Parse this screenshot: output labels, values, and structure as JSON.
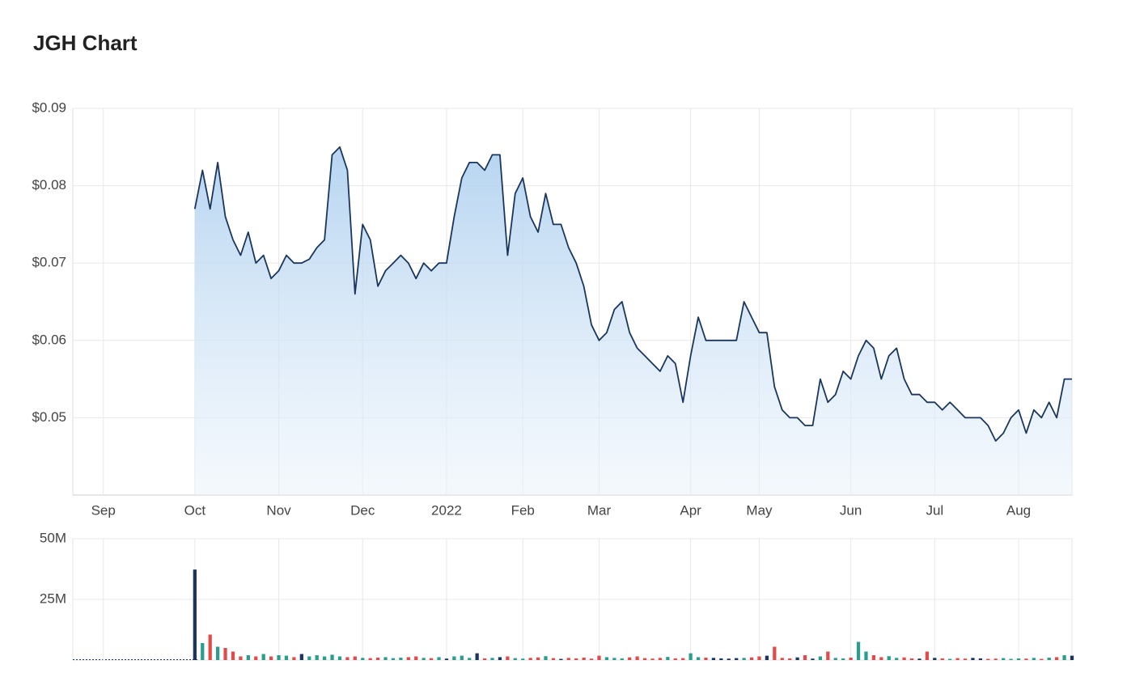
{
  "chart_data": [
    {
      "type": "area",
      "title": "JGH Chart",
      "categories": [
        null,
        null,
        null,
        null,
        "Sep",
        null,
        null,
        null,
        null,
        null,
        null,
        null,
        null,
        null,
        null,
        null,
        "Oct",
        null,
        null,
        null,
        null,
        null,
        null,
        null,
        null,
        null,
        null,
        "Nov",
        null,
        null,
        null,
        null,
        null,
        null,
        null,
        null,
        null,
        null,
        "Dec",
        null,
        null,
        null,
        null,
        null,
        null,
        null,
        null,
        null,
        null,
        "2022",
        null,
        null,
        null,
        null,
        null,
        null,
        null,
        null,
        null,
        "Feb",
        null,
        null,
        null,
        null,
        null,
        null,
        null,
        null,
        null,
        "Mar",
        null,
        null,
        null,
        null,
        null,
        null,
        null,
        null,
        null,
        null,
        null,
        "Apr",
        null,
        null,
        null,
        null,
        null,
        null,
        null,
        null,
        "May",
        null,
        null,
        null,
        null,
        null,
        null,
        null,
        null,
        null,
        null,
        null,
        "Jun",
        null,
        null,
        null,
        null,
        null,
        null,
        null,
        null,
        null,
        null,
        "Jul",
        null,
        null,
        null,
        null,
        null,
        null,
        null,
        null,
        null,
        null,
        "Aug",
        null,
        null,
        null,
        null,
        null,
        null,
        null
      ],
      "values": [
        null,
        null,
        null,
        null,
        null,
        null,
        null,
        null,
        null,
        null,
        null,
        null,
        null,
        null,
        null,
        null,
        0.077,
        0.082,
        0.077,
        0.083,
        0.076,
        0.073,
        0.071,
        0.074,
        0.07,
        0.071,
        0.068,
        0.069,
        0.071,
        0.07,
        0.07,
        0.0705,
        0.072,
        0.073,
        0.084,
        0.085,
        0.082,
        0.066,
        0.075,
        0.073,
        0.067,
        0.069,
        0.07,
        0.071,
        0.07,
        0.068,
        0.07,
        0.069,
        0.07,
        0.07,
        0.076,
        0.081,
        0.083,
        0.083,
        0.082,
        0.084,
        0.084,
        0.071,
        0.079,
        0.081,
        0.076,
        0.074,
        0.079,
        0.075,
        0.075,
        0.072,
        0.07,
        0.067,
        0.062,
        0.06,
        0.061,
        0.064,
        0.065,
        0.061,
        0.059,
        0.058,
        0.057,
        0.056,
        0.058,
        0.057,
        0.052,
        0.058,
        0.063,
        0.06,
        0.06,
        0.06,
        0.06,
        0.06,
        0.065,
        0.063,
        0.061,
        0.061,
        0.054,
        0.051,
        0.05,
        0.05,
        0.049,
        0.049,
        0.055,
        0.052,
        0.053,
        0.056,
        0.055,
        0.058,
        0.06,
        0.059,
        0.055,
        0.058,
        0.059,
        0.055,
        0.053,
        0.053,
        0.052,
        0.052,
        0.051,
        0.052,
        0.051,
        0.05,
        0.05,
        0.05,
        0.049,
        0.047,
        0.048,
        0.05,
        0.051,
        0.048,
        0.051,
        0.05,
        0.052,
        0.05,
        0.055,
        0.055
      ],
      "color": "#1b365d",
      "ylim": [
        0.04,
        0.09
      ],
      "yticks": [
        {
          "value": 0.05,
          "label": "$0.05"
        },
        {
          "value": 0.06,
          "label": "$0.06"
        },
        {
          "value": 0.07,
          "label": "$0.07"
        },
        {
          "value": 0.08,
          "label": "$0.08"
        },
        {
          "value": 0.09,
          "label": "$0.09"
        }
      ],
      "grid": true
    },
    {
      "type": "bar",
      "values": [
        null,
        null,
        null,
        null,
        null,
        null,
        null,
        null,
        null,
        null,
        null,
        null,
        null,
        null,
        null,
        null,
        37300000,
        7000000,
        10500000,
        5500000,
        5000000,
        3500000,
        1500000,
        2000000,
        1500000,
        2500000,
        1500000,
        2000000,
        1800000,
        1200000,
        2500000,
        1500000,
        2000000,
        1500000,
        2200000,
        1500000,
        1200000,
        1500000,
        900000,
        800000,
        1000000,
        1200000,
        800000,
        1000000,
        1200000,
        1500000,
        900000,
        800000,
        1200000,
        600000,
        1500000,
        1800000,
        900000,
        2800000,
        700000,
        900000,
        1200000,
        1500000,
        800000,
        600000,
        900000,
        1100000,
        1600000,
        800000,
        500000,
        900000,
        700000,
        1000000,
        600000,
        1800000,
        1200000,
        900000,
        700000,
        1100000,
        1500000,
        800000,
        600000,
        900000,
        1300000,
        700000,
        800000,
        2800000,
        1200000,
        1000000,
        900000,
        700000,
        600000,
        800000,
        900000,
        1100000,
        1500000,
        1800000,
        5500000,
        900000,
        700000,
        1100000,
        2000000,
        600000,
        1500000,
        3500000,
        900000,
        700000,
        1000000,
        7500000,
        3500000,
        2000000,
        1200000,
        1600000,
        900000,
        1100000,
        700000,
        600000,
        3500000,
        900000,
        700000,
        500000,
        800000,
        600000,
        900000,
        700000,
        500000,
        600000,
        800000,
        500000,
        700000,
        600000,
        900000,
        500000,
        1000000,
        1200000,
        2000000,
        1800000
      ],
      "color": "#1b365d",
      "up_color": "#2a9d8f",
      "down_color": "#e04b4b",
      "ylim": [
        0,
        50000000
      ],
      "yticks": [
        {
          "value": 25000000,
          "label": "25M"
        },
        {
          "value": 50000000,
          "label": "50M"
        }
      ],
      "grid": true
    }
  ]
}
